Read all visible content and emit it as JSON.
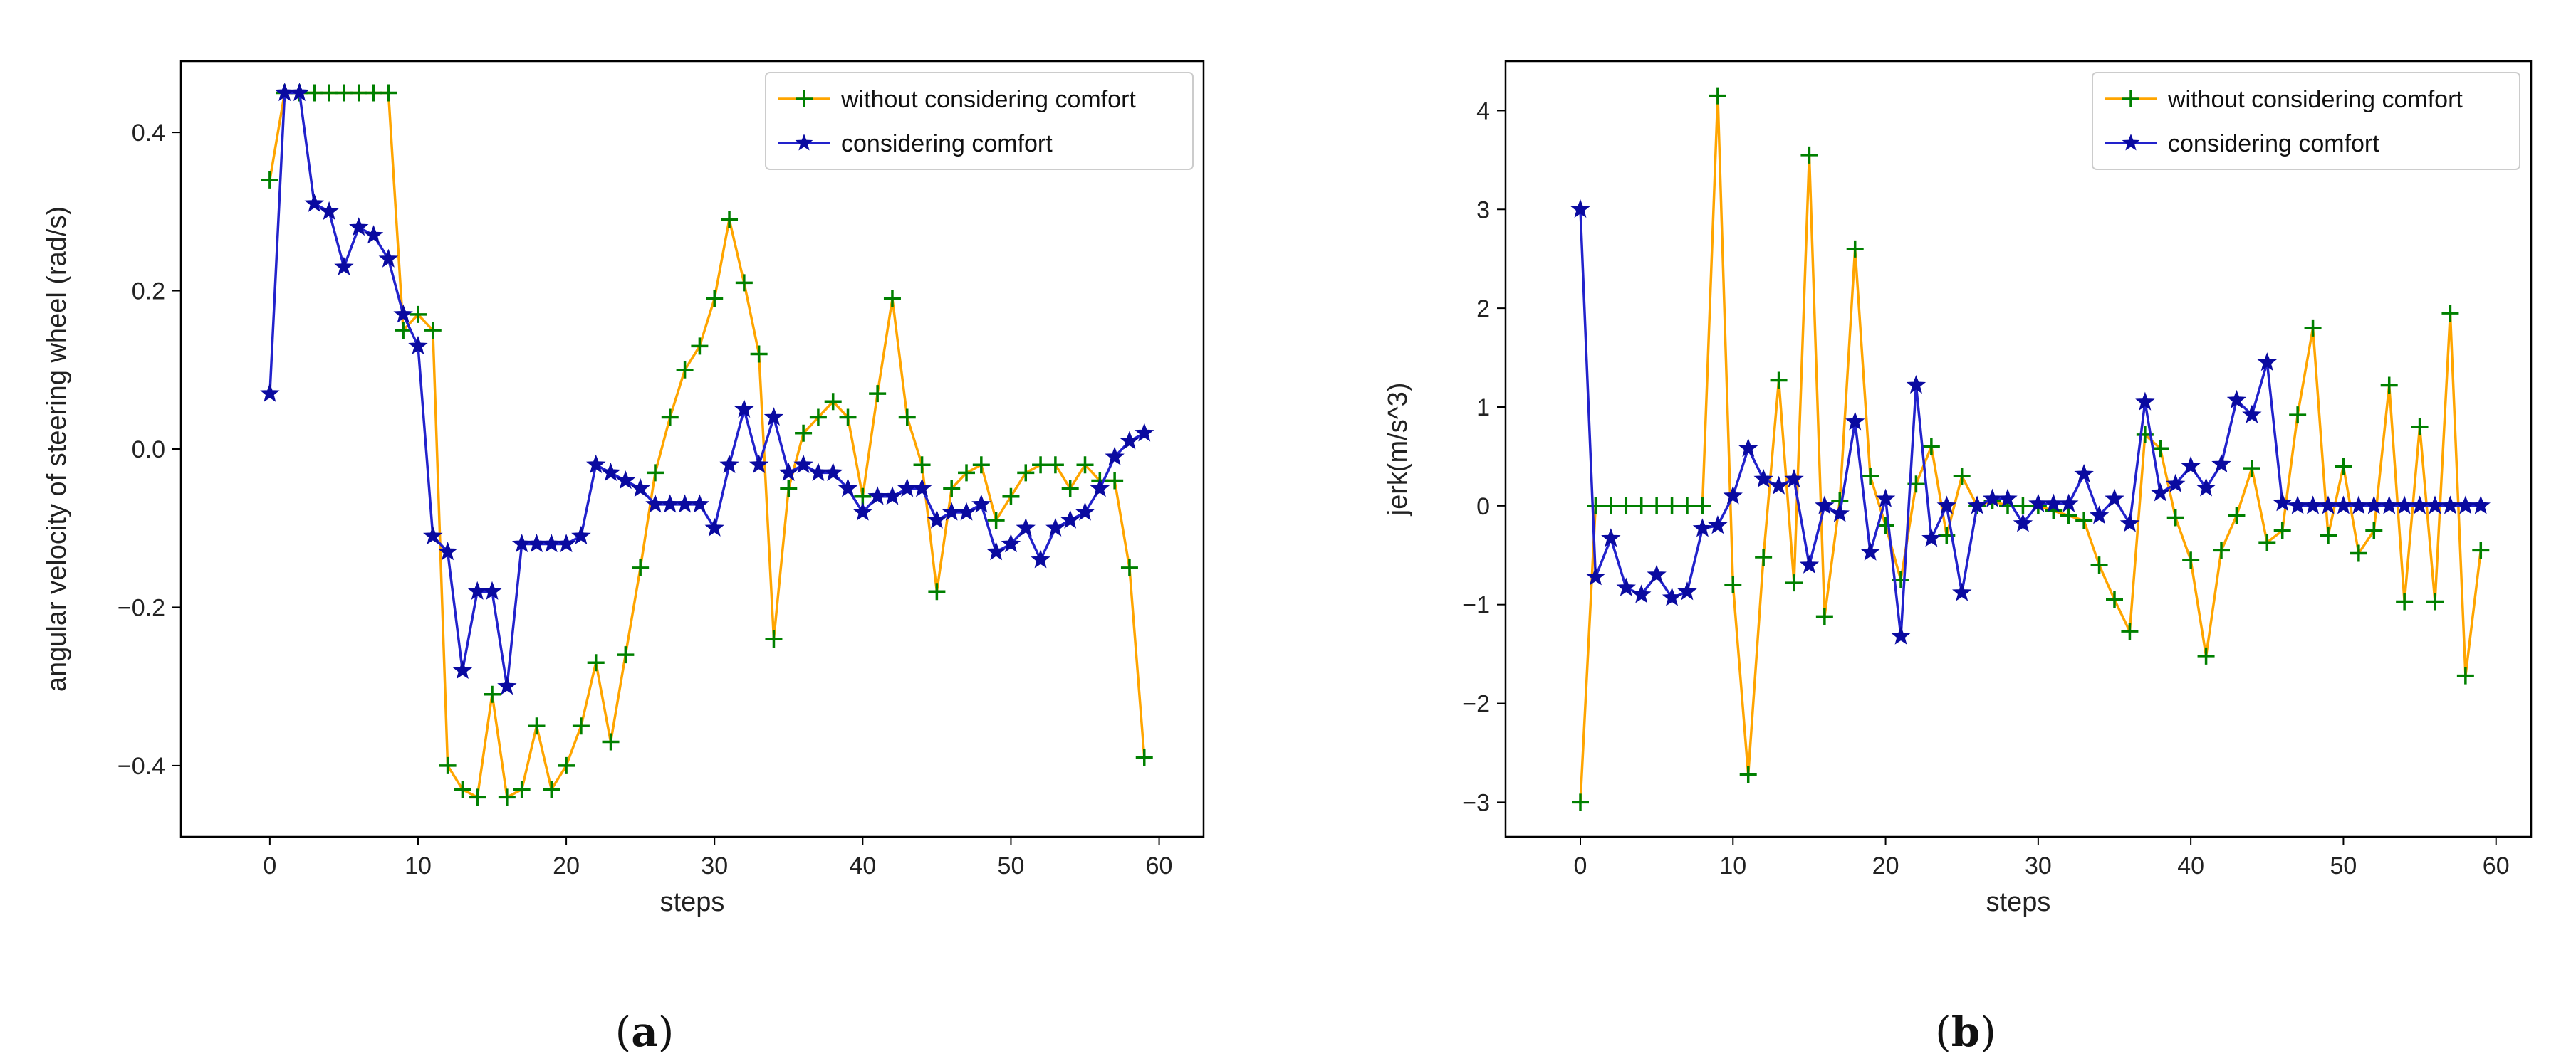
{
  "chart_data": [
    {
      "type": "line",
      "panel": "a",
      "caption": {
        "open": "(",
        "letter": "a",
        "close": ")"
      },
      "xlabel": "steps",
      "ylabel": "angular velocity of steering wheel (rad/s)",
      "xlim": [
        -6,
        63
      ],
      "ylim": [
        -0.49,
        0.49
      ],
      "xticks": [
        0,
        10,
        20,
        30,
        40,
        50,
        60
      ],
      "xtick_labels": [
        "0",
        "10",
        "20",
        "30",
        "40",
        "50",
        "60"
      ],
      "yticks": [
        -0.4,
        -0.2,
        0.0,
        0.2,
        0.4
      ],
      "ytick_labels": [
        "−0.4",
        "−0.2",
        "0.0",
        "0.2",
        "0.4"
      ],
      "legend_position": "top-right",
      "series": [
        {
          "name": "without considering comfort",
          "line_color": "#ffa500",
          "marker": "plus",
          "marker_color": "#008000",
          "x": [
            0,
            1,
            2,
            3,
            4,
            5,
            6,
            7,
            8,
            9,
            10,
            11,
            12,
            13,
            14,
            15,
            16,
            17,
            18,
            19,
            20,
            21,
            22,
            23,
            24,
            25,
            26,
            27,
            28,
            29,
            30,
            31,
            32,
            33,
            34,
            35,
            36,
            37,
            38,
            39,
            40,
            41,
            42,
            43,
            44,
            45,
            46,
            47,
            48,
            49,
            50,
            51,
            52,
            53,
            54,
            55,
            56,
            57,
            58,
            59
          ],
          "values": [
            0.34,
            0.45,
            0.45,
            0.45,
            0.45,
            0.45,
            0.45,
            0.45,
            0.45,
            0.15,
            0.17,
            0.15,
            -0.4,
            -0.43,
            -0.44,
            -0.31,
            -0.44,
            -0.43,
            -0.35,
            -0.43,
            -0.4,
            -0.35,
            -0.27,
            -0.37,
            -0.26,
            -0.15,
            -0.03,
            0.04,
            0.1,
            0.13,
            0.19,
            0.29,
            0.21,
            0.12,
            -0.24,
            -0.05,
            0.02,
            0.04,
            0.06,
            0.04,
            -0.06,
            0.07,
            0.19,
            0.04,
            -0.02,
            -0.18,
            -0.05,
            -0.03,
            -0.02,
            -0.09,
            -0.06,
            -0.03,
            -0.02,
            -0.02,
            -0.05,
            -0.02,
            -0.04,
            -0.04,
            -0.15,
            -0.39
          ]
        },
        {
          "name": "considering comfort",
          "line_color": "#2222cc",
          "marker": "star",
          "marker_color": "#0a0aa0",
          "x": [
            0,
            1,
            2,
            3,
            4,
            5,
            6,
            7,
            8,
            9,
            10,
            11,
            12,
            13,
            14,
            15,
            16,
            17,
            18,
            19,
            20,
            21,
            22,
            23,
            24,
            25,
            26,
            27,
            28,
            29,
            30,
            31,
            32,
            33,
            34,
            35,
            36,
            37,
            38,
            39,
            40,
            41,
            42,
            43,
            44,
            45,
            46,
            47,
            48,
            49,
            50,
            51,
            52,
            53,
            54,
            55,
            56,
            57,
            58,
            59
          ],
          "values": [
            0.07,
            0.45,
            0.45,
            0.31,
            0.3,
            0.23,
            0.28,
            0.27,
            0.24,
            0.17,
            0.13,
            -0.11,
            -0.13,
            -0.28,
            -0.18,
            -0.18,
            -0.3,
            -0.12,
            -0.12,
            -0.12,
            -0.12,
            -0.11,
            -0.02,
            -0.03,
            -0.04,
            -0.05,
            -0.07,
            -0.07,
            -0.07,
            -0.07,
            -0.1,
            -0.02,
            0.05,
            -0.02,
            0.04,
            -0.03,
            -0.02,
            -0.03,
            -0.03,
            -0.05,
            -0.08,
            -0.06,
            -0.06,
            -0.05,
            -0.05,
            -0.09,
            -0.08,
            -0.08,
            -0.07,
            -0.13,
            -0.12,
            -0.1,
            -0.14,
            -0.1,
            -0.09,
            -0.08,
            -0.05,
            -0.01,
            0.01,
            0.02
          ]
        }
      ]
    },
    {
      "type": "line",
      "panel": "b",
      "caption": {
        "open": "(",
        "letter": "b",
        "close": ")"
      },
      "xlabel": "steps",
      "ylabel": "jerk(m/s^3)",
      "xlim": [
        -4.9,
        62.3
      ],
      "ylim": [
        -3.35,
        4.5
      ],
      "xticks": [
        0,
        10,
        20,
        30,
        40,
        50,
        60
      ],
      "xtick_labels": [
        "0",
        "10",
        "20",
        "30",
        "40",
        "50",
        "60"
      ],
      "yticks": [
        -3,
        -2,
        -1,
        0,
        1,
        2,
        3,
        4
      ],
      "ytick_labels": [
        "−3",
        "−2",
        "−1",
        "0",
        "1",
        "2",
        "3",
        "4"
      ],
      "legend_position": "top-right",
      "series": [
        {
          "name": "without considering comfort",
          "line_color": "#ffa500",
          "marker": "plus",
          "marker_color": "#008000",
          "x": [
            0,
            1,
            2,
            3,
            4,
            5,
            6,
            7,
            8,
            9,
            10,
            11,
            12,
            13,
            14,
            15,
            16,
            17,
            18,
            19,
            20,
            21,
            22,
            23,
            24,
            25,
            26,
            27,
            28,
            29,
            30,
            31,
            32,
            33,
            34,
            35,
            36,
            37,
            38,
            39,
            40,
            41,
            42,
            43,
            44,
            45,
            46,
            47,
            48,
            49,
            50,
            51,
            52,
            53,
            54,
            55,
            56,
            57,
            58,
            59
          ],
          "values": [
            -3.0,
            0.0,
            0.0,
            0.0,
            0.0,
            0.0,
            0.0,
            0.0,
            0.0,
            4.15,
            -0.8,
            -2.72,
            -0.52,
            1.27,
            -0.78,
            3.55,
            -1.12,
            0.05,
            2.6,
            0.3,
            -0.2,
            -0.75,
            0.22,
            0.6,
            -0.3,
            0.3,
            0.0,
            0.05,
            0.0,
            0.0,
            0.0,
            -0.05,
            -0.1,
            -0.15,
            -0.6,
            -0.95,
            -1.27,
            0.72,
            0.58,
            -0.12,
            -0.55,
            -1.52,
            -0.45,
            -0.1,
            0.38,
            -0.37,
            -0.25,
            0.92,
            1.8,
            -0.3,
            0.4,
            -0.48,
            -0.25,
            1.22,
            -0.97,
            0.8,
            -0.97,
            1.95,
            -1.72,
            -0.45
          ]
        },
        {
          "name": "considering comfort",
          "line_color": "#2222cc",
          "marker": "star",
          "marker_color": "#0a0aa0",
          "x": [
            0,
            1,
            2,
            3,
            4,
            5,
            6,
            7,
            8,
            9,
            10,
            11,
            12,
            13,
            14,
            15,
            16,
            17,
            18,
            19,
            20,
            21,
            22,
            23,
            24,
            25,
            26,
            27,
            28,
            29,
            30,
            31,
            32,
            33,
            34,
            35,
            36,
            37,
            38,
            39,
            40,
            41,
            42,
            43,
            44,
            45,
            46,
            47,
            48,
            49,
            50,
            51,
            52,
            53,
            54,
            55,
            56,
            57,
            58,
            59
          ],
          "values": [
            3.0,
            -0.72,
            -0.33,
            -0.83,
            -0.9,
            -0.7,
            -0.93,
            -0.87,
            -0.23,
            -0.2,
            0.1,
            0.58,
            0.27,
            0.2,
            0.27,
            -0.6,
            0.0,
            -0.08,
            0.85,
            -0.47,
            0.07,
            -1.32,
            1.22,
            -0.33,
            0.0,
            -0.88,
            0.0,
            0.07,
            0.07,
            -0.18,
            0.02,
            0.02,
            0.02,
            0.32,
            -0.1,
            0.07,
            -0.18,
            1.05,
            0.13,
            0.22,
            0.4,
            0.18,
            0.42,
            1.07,
            0.92,
            1.45,
            0.03,
            0.0,
            0.0,
            0.0,
            0.0,
            0.0,
            0.0,
            0.0,
            0.0,
            0.0,
            0.0,
            0.0,
            0.0,
            0.0
          ]
        }
      ]
    }
  ]
}
